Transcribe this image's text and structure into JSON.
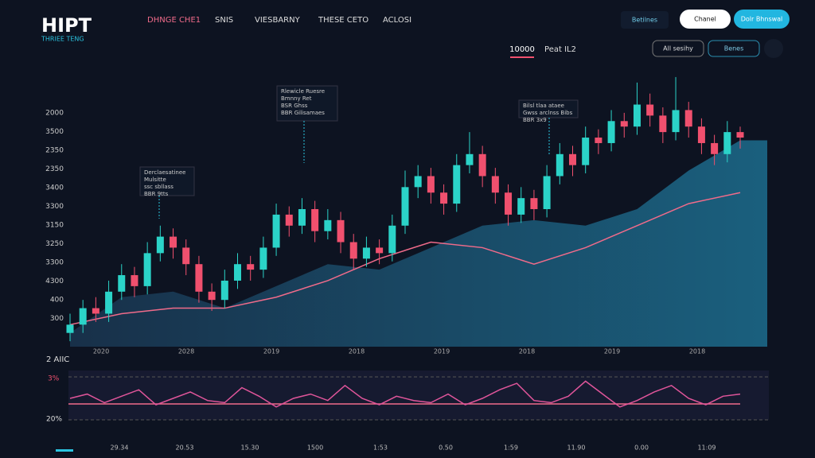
{
  "header": {
    "logo": "HIPT",
    "logo_sub": "THRIEE TENG",
    "nav": [
      "DHNGE CHE1",
      "SNIS",
      "VIESBARNY",
      "THESE CETO",
      "ACLOSI"
    ],
    "link": "Betilnes",
    "buttons": [
      "Chanel",
      "Dolr Bhnswal"
    ]
  },
  "toolbar": {
    "tabs": [
      "10000",
      "Peat IL2"
    ],
    "controls": [
      "All sesihy",
      "Benes"
    ]
  },
  "annotations": [
    [
      "Rlewicle Ruesre",
      "Bmnny Ret",
      "BSR Ghss",
      "BBR Gilisamaes"
    ],
    [
      "Bilsl tlaa ataee",
      "Gwss arclnss Bibs",
      "BBR 3x9"
    ],
    [
      "Derclaesatinee",
      "Mulsitte",
      "ssc sbllass",
      "BBR 9tts"
    ]
  ],
  "chart_data": {
    "type": "candlestick",
    "ylim": [
      0,
      100
    ],
    "y_labels": [
      "2000",
      "3500",
      "2350",
      "2350",
      "3400",
      "3300",
      "3150",
      "3250",
      "3300",
      "4300",
      "400",
      "300"
    ],
    "x_labels": [
      "2020",
      "2028",
      "2019",
      "2018",
      "2019",
      "2018",
      "2019",
      "2018"
    ],
    "open": [
      5,
      8,
      14,
      12,
      20,
      26,
      22,
      34,
      40,
      36,
      30,
      20,
      17,
      24,
      30,
      28,
      36,
      48,
      44,
      50,
      42,
      46,
      38,
      32,
      36,
      34,
      44,
      58,
      62,
      56,
      52,
      66,
      70,
      62,
      56,
      48,
      54,
      50,
      62,
      70,
      66,
      76,
      74,
      82,
      80,
      88,
      84,
      78,
      86,
      80,
      74,
      70,
      78
    ],
    "close": [
      8,
      14,
      12,
      20,
      26,
      22,
      34,
      40,
      36,
      30,
      20,
      17,
      24,
      30,
      28,
      36,
      48,
      44,
      50,
      42,
      46,
      38,
      32,
      36,
      34,
      44,
      58,
      62,
      56,
      52,
      66,
      70,
      62,
      56,
      48,
      54,
      50,
      62,
      70,
      66,
      76,
      74,
      82,
      80,
      88,
      84,
      78,
      86,
      80,
      74,
      70,
      78,
      76
    ],
    "high": [
      12,
      17,
      18,
      24,
      30,
      29,
      38,
      44,
      43,
      39,
      33,
      23,
      28,
      34,
      33,
      40,
      52,
      51,
      54,
      53,
      50,
      49,
      41,
      40,
      39,
      48,
      64,
      66,
      65,
      59,
      70,
      78,
      73,
      65,
      59,
      58,
      57,
      66,
      74,
      73,
      80,
      79,
      86,
      85,
      96,
      92,
      87,
      98,
      89,
      83,
      77,
      82,
      80
    ],
    "low": [
      2,
      5,
      9,
      9,
      17,
      18,
      19,
      31,
      32,
      26,
      16,
      13,
      14,
      21,
      24,
      25,
      33,
      40,
      41,
      38,
      39,
      34,
      28,
      29,
      30,
      31,
      41,
      54,
      52,
      48,
      49,
      63,
      58,
      52,
      44,
      45,
      46,
      47,
      59,
      62,
      63,
      70,
      71,
      76,
      77,
      80,
      74,
      75,
      76,
      70,
      66,
      67,
      72
    ],
    "area": [
      5,
      18,
      20,
      14,
      22,
      30,
      28,
      36,
      44,
      46,
      44,
      50,
      64,
      75
    ],
    "line": [
      8,
      12,
      14,
      14,
      18,
      24,
      32,
      38,
      36,
      30,
      36,
      44,
      52,
      56
    ]
  },
  "oscillator": {
    "title": "2 AIIC",
    "labels": [
      "3%",
      "20%"
    ],
    "ylim": [
      0,
      100
    ],
    "values": [
      50,
      60,
      40,
      55,
      70,
      35,
      50,
      65,
      45,
      40,
      75,
      55,
      30,
      50,
      60,
      45,
      80,
      50,
      35,
      55,
      45,
      40,
      60,
      35,
      50,
      70,
      85,
      45,
      40,
      55,
      90,
      60,
      30,
      45,
      65,
      80,
      50,
      35,
      55,
      60
    ],
    "x_labels": [
      "29.34",
      "20.53",
      "15.30",
      "1500",
      "1:53",
      "0.50",
      "1:59",
      "11.90",
      "0.00",
      "11:09"
    ]
  }
}
